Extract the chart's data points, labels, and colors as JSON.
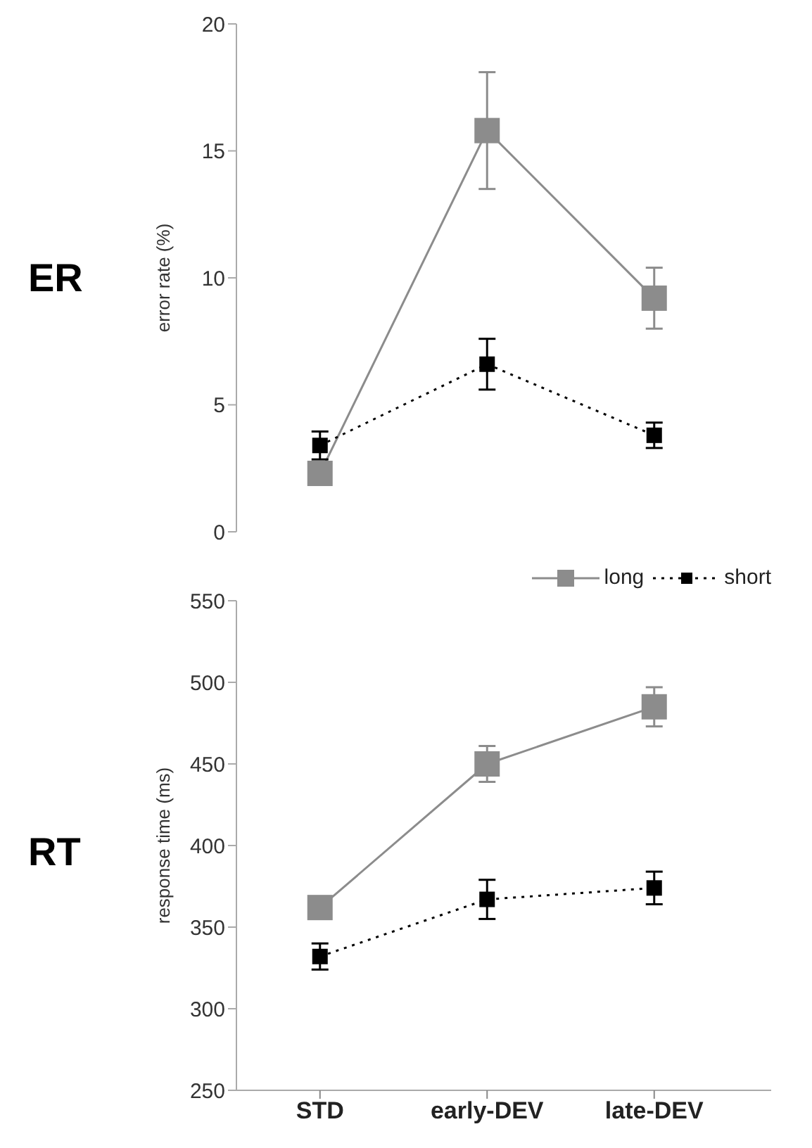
{
  "chart_data": [
    {
      "type": "line",
      "title": "ER",
      "ylabel": "error rate (%)",
      "ylim": [
        0,
        20
      ],
      "yticks": [
        0,
        5,
        10,
        15,
        20
      ],
      "tick_labels": "y",
      "grid": false,
      "legend": false,
      "marker": "square",
      "series": [
        {
          "color": "#8c8c8c",
          "line_style": "solid",
          "values": [
            2.3,
            15.8,
            9.2
          ],
          "errors": [
            null,
            2.3,
            1.2
          ]
        },
        {
          "color": "#000000",
          "line_style": "dotted",
          "values": [
            3.4,
            6.6,
            3.8
          ],
          "errors": [
            0.55,
            1.0,
            0.5
          ]
        }
      ]
    },
    {
      "type": "line",
      "title": "RT",
      "ylabel": "response time (ms)",
      "categories": [
        "STD",
        "early-DEV",
        "late-DEV"
      ],
      "ylim": [
        250,
        550
      ],
      "yticks": [
        250,
        300,
        350,
        400,
        450,
        500,
        550
      ],
      "grid": false,
      "legend": "top right",
      "marker": "square",
      "series": [
        {
          "name": "long",
          "color": "#8c8c8c",
          "line_style": "solid",
          "values": [
            362,
            450,
            485
          ],
          "errors": [
            null,
            11,
            12
          ]
        },
        {
          "name": "short",
          "color": "#000000",
          "line_style": "dotted",
          "values": [
            332,
            367,
            374
          ],
          "errors": [
            8,
            12,
            10
          ]
        }
      ]
    }
  ]
}
